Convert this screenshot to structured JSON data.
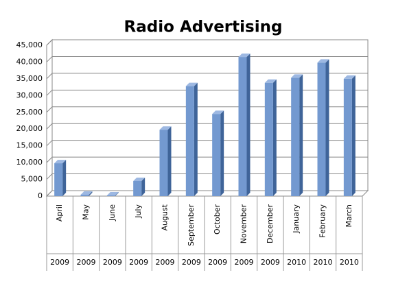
{
  "chart_data": {
    "type": "bar3d",
    "title": "Radio Advertising",
    "categories": [
      "April",
      "May",
      "June",
      "July",
      "August",
      "September",
      "October",
      "November",
      "December",
      "January",
      "February",
      "March"
    ],
    "years": [
      "2009",
      "2009",
      "2009",
      "2009",
      "2009",
      "2009",
      "2009",
      "2009",
      "2009",
      "2010",
      "2010",
      "2010"
    ],
    "values": [
      9800,
      400,
      200,
      4500,
      19800,
      32800,
      24500,
      41500,
      33800,
      35300,
      39800,
      35000
    ],
    "color": "#7399d0",
    "ylim": [
      0,
      45000
    ],
    "yticks": [
      0,
      {
        "value": 5000,
        "label": "5,000"
      },
      {
        "value": 10000,
        "label": "10,000"
      },
      {
        "value": 15000,
        "label": "15,000"
      },
      {
        "value": 20000,
        "label": "20,000"
      },
      {
        "value": 25000,
        "label": "25,000"
      },
      {
        "value": 30000,
        "label": "30,000"
      },
      {
        "value": 35000,
        "label": "35,000"
      },
      {
        "value": 40000,
        "label": "40,000"
      },
      {
        "value": 45000,
        "label": "45,000"
      }
    ],
    "grid": true
  }
}
